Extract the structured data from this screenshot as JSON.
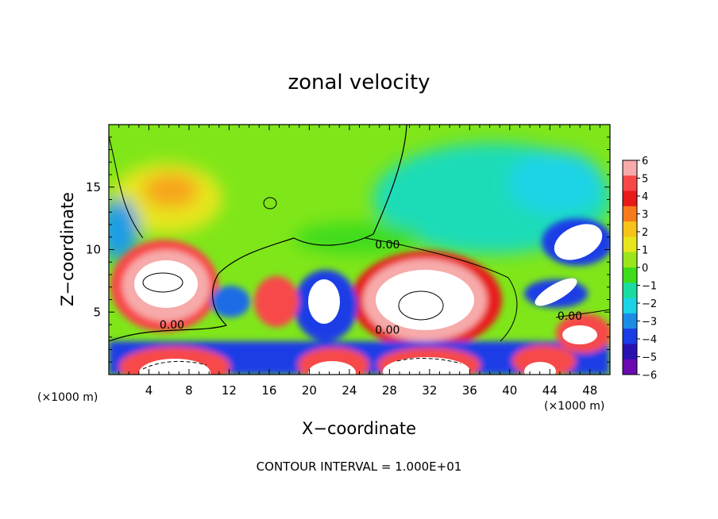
{
  "chart_data": {
    "type": "heatmap",
    "title": "zonal velocity",
    "xlabel": "X−coordinate",
    "ylabel": "Z−coordinate",
    "x_unit_left": "(×1000 m)",
    "x_unit_right": "(×1000 m)",
    "xlim": [
      0,
      50
    ],
    "ylim": [
      0,
      20
    ],
    "x_ticks": [
      4,
      8,
      12,
      16,
      20,
      24,
      28,
      32,
      36,
      40,
      44,
      48
    ],
    "y_ticks": [
      5,
      10,
      15
    ],
    "colorbar": {
      "labels": [
        "6",
        "5",
        "4",
        "3",
        "2",
        "1",
        "0",
        "−1",
        "−2",
        "−3",
        "−4",
        "−5",
        "−6"
      ],
      "colors": [
        "#f7aaaa",
        "#f74848",
        "#e81a1a",
        "#f77b1a",
        "#f7c31a",
        "#e6e61a",
        "#9be61a",
        "#3fdc1a",
        "#1adca0",
        "#1ad4e6",
        "#1a8ce6",
        "#1a3ce6",
        "#2a12b0",
        "#6a0ab0"
      ],
      "range": [
        -6,
        6
      ]
    },
    "contour_labels": [
      {
        "text": "0.00",
        "x": 6.3,
        "z": 4.0
      },
      {
        "text": "0.00",
        "x": 27.8,
        "z": 10.4
      },
      {
        "text": "0.00",
        "x": 27.8,
        "z": 3.6
      },
      {
        "text": "0.00",
        "x": 46.0,
        "z": 4.7
      }
    ],
    "footnote": "CONTOUR INTERVAL =  1.000E+01"
  }
}
